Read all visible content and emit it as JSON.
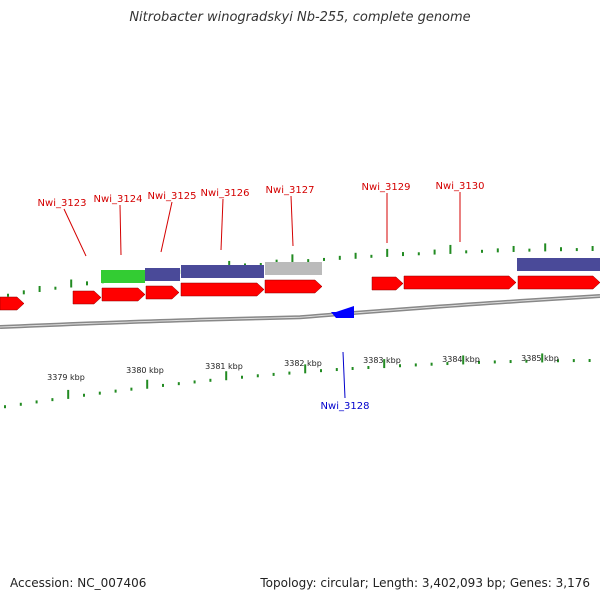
{
  "title": "Nitrobacter winogradskyi Nb-255, complete genome",
  "footer": {
    "accession": "Accession: NC_007406",
    "summary": "Topology: circular; Length: 3,402,093 bp; Genes: 3,176"
  },
  "colors": {
    "forward_gene": "#ff0000",
    "reverse_gene": "#0000ff",
    "forward_label": "#d40000",
    "reverse_label": "#0000cc",
    "cds_green": "#33cc33",
    "cds_purple": "#4a4a99",
    "cds_gray": "#bbbbbb",
    "gc_tick": "#228b22",
    "backbone": "#888888"
  },
  "scale_ticks": [
    {
      "label": "3379 kbp"
    },
    {
      "label": "3380 kbp"
    },
    {
      "label": "3381 kbp"
    },
    {
      "label": "3382 kbp"
    },
    {
      "label": "3383 kbp"
    },
    {
      "label": "3384 kbp"
    },
    {
      "label": "3385 kbp"
    }
  ],
  "gene_labels": [
    {
      "name": "Nwi_3123",
      "strand": "forward"
    },
    {
      "name": "Nwi_3124",
      "strand": "forward"
    },
    {
      "name": "Nwi_3125",
      "strand": "forward"
    },
    {
      "name": "Nwi_3126",
      "strand": "forward"
    },
    {
      "name": "Nwi_3127",
      "strand": "forward"
    },
    {
      "name": "Nwi_3128",
      "strand": "reverse"
    },
    {
      "name": "Nwi_3129",
      "strand": "forward"
    },
    {
      "name": "Nwi_3130",
      "strand": "forward"
    }
  ]
}
